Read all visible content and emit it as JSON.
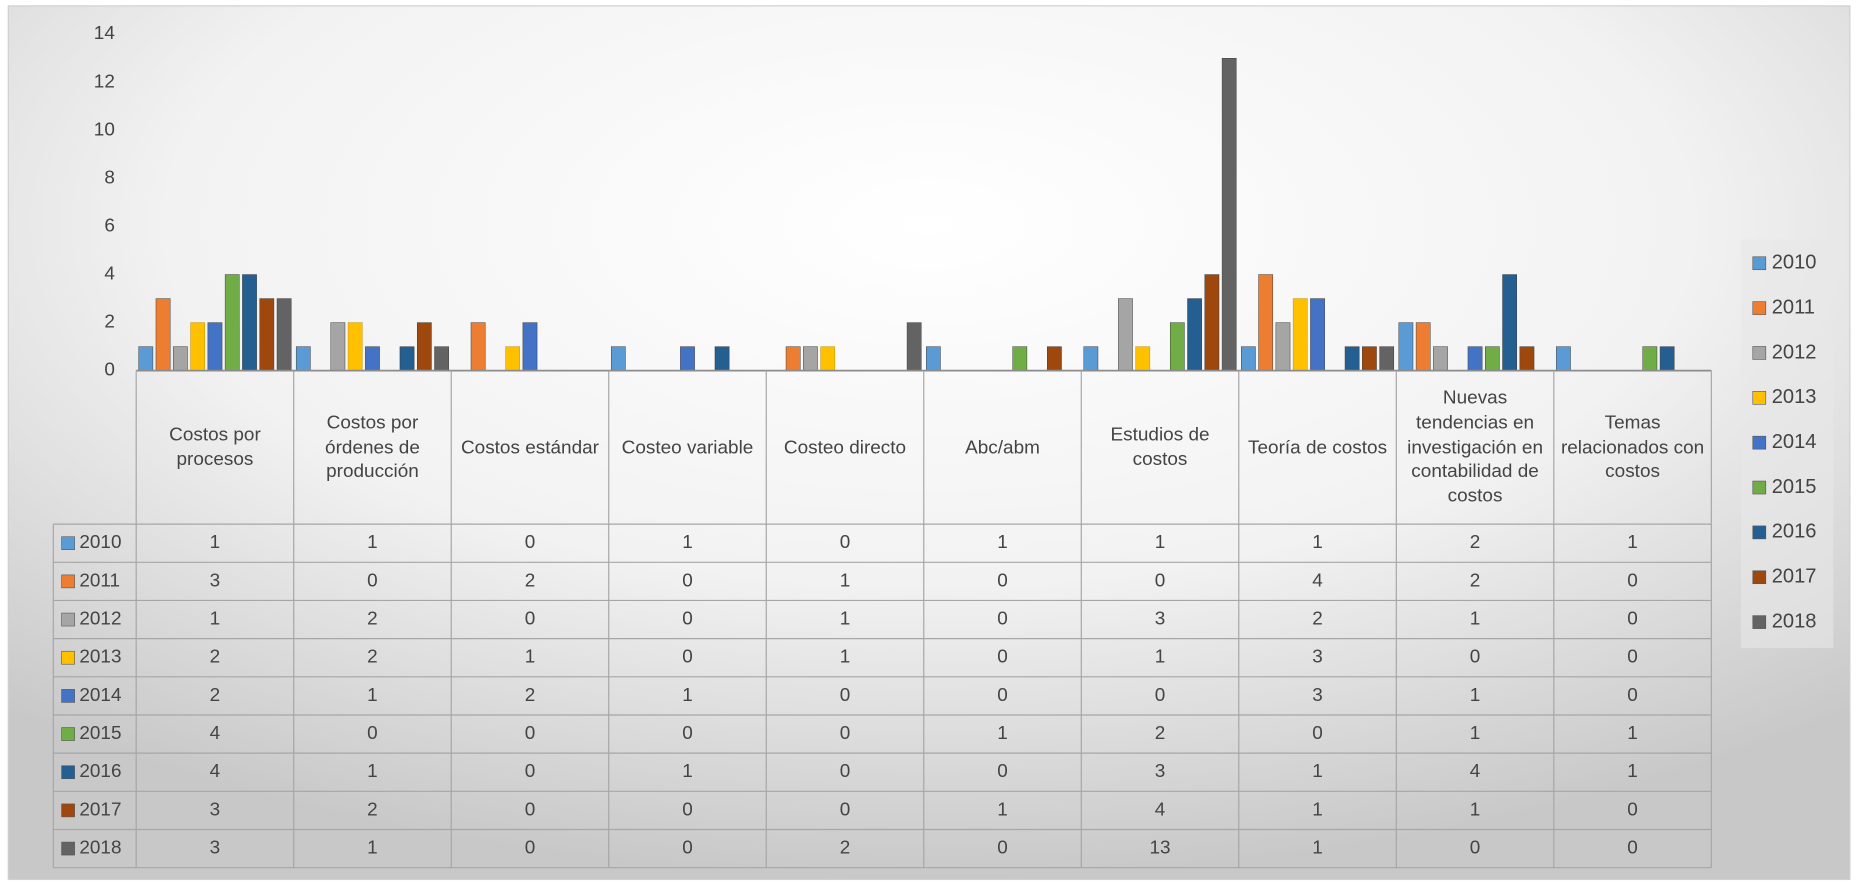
{
  "chart_data": {
    "type": "bar",
    "categories": [
      "Costos por procesos",
      "Costos por órdenes de producción",
      "Costos estándar",
      "Costeo variable",
      "Costeo directo",
      "Abc/abm",
      "Estudios de costos",
      "Teoría de costos",
      "Nuevas tendencias en investigación en contabilidad de costos",
      "Temas relacionados con costos"
    ],
    "series": [
      {
        "name": "2010",
        "color": "#5b9bd5",
        "values": [
          1,
          1,
          0,
          1,
          0,
          1,
          1,
          1,
          2,
          1
        ]
      },
      {
        "name": "2011",
        "color": "#ed7d31",
        "values": [
          3,
          0,
          2,
          0,
          1,
          0,
          0,
          4,
          2,
          0
        ]
      },
      {
        "name": "2012",
        "color": "#a5a5a5",
        "values": [
          1,
          2,
          0,
          0,
          1,
          0,
          3,
          2,
          1,
          0
        ]
      },
      {
        "name": "2013",
        "color": "#ffc000",
        "values": [
          2,
          2,
          1,
          0,
          1,
          0,
          1,
          3,
          0,
          0
        ]
      },
      {
        "name": "2014",
        "color": "#4472c4",
        "values": [
          2,
          1,
          2,
          1,
          0,
          0,
          0,
          3,
          1,
          0
        ]
      },
      {
        "name": "2015",
        "color": "#70ad47",
        "values": [
          4,
          0,
          0,
          0,
          0,
          1,
          2,
          0,
          1,
          1
        ]
      },
      {
        "name": "2016",
        "color": "#255e91",
        "values": [
          4,
          1,
          0,
          1,
          0,
          0,
          3,
          1,
          4,
          1
        ]
      },
      {
        "name": "2017",
        "color": "#9e480e",
        "values": [
          3,
          2,
          0,
          0,
          0,
          1,
          4,
          1,
          1,
          0
        ]
      },
      {
        "name": "2018",
        "color": "#636363",
        "values": [
          3,
          1,
          0,
          0,
          2,
          0,
          13,
          1,
          0,
          0
        ]
      }
    ],
    "ylim": [
      0,
      14
    ],
    "yticks": [
      0,
      2,
      4,
      6,
      8,
      10,
      12,
      14
    ],
    "grid": false,
    "legend": "right",
    "data_table": true
  }
}
